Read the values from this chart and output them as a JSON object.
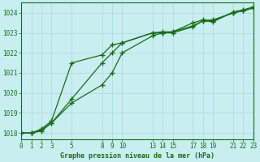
{
  "title": "Graphe pression niveau de la mer (hPa)",
  "bg_color": "#c8eef0",
  "grid_color": "#b0dce0",
  "line_color": "#1a6b1a",
  "x_ticks": [
    0,
    1,
    2,
    3,
    5,
    8,
    9,
    10,
    13,
    14,
    15,
    17,
    18,
    19,
    21,
    22,
    23
  ],
  "y_ticks": [
    1018,
    1019,
    1020,
    1021,
    1022,
    1023,
    1024
  ],
  "xlim": [
    0,
    23
  ],
  "ylim": [
    1017.7,
    1024.5
  ],
  "line1_x": [
    0,
    1,
    2,
    3,
    5,
    8,
    9,
    10,
    13,
    14,
    15,
    17,
    18,
    19,
    21,
    22,
    23
  ],
  "line1_y": [
    1018.0,
    1018.0,
    1018.2,
    1018.6,
    1021.5,
    1021.9,
    1022.4,
    1022.5,
    1023.0,
    1023.05,
    1023.05,
    1023.5,
    1023.65,
    1023.6,
    1024.0,
    1024.1,
    1024.25
  ],
  "line2_x": [
    0,
    1,
    2,
    3,
    5,
    8,
    9,
    10,
    13,
    14,
    15,
    17,
    18,
    19,
    21,
    22,
    23
  ],
  "line2_y": [
    1018.0,
    1018.0,
    1018.1,
    1018.5,
    1019.5,
    1020.4,
    1021.0,
    1022.0,
    1022.85,
    1023.0,
    1023.05,
    1023.35,
    1023.6,
    1023.65,
    1024.0,
    1024.1,
    1024.25
  ],
  "line3_x": [
    0,
    1,
    2,
    3,
    5,
    8,
    9,
    10,
    13,
    14,
    15,
    17,
    18,
    19,
    21,
    22,
    23
  ],
  "line3_y": [
    1018.0,
    1018.0,
    1018.15,
    1018.5,
    1019.7,
    1021.5,
    1022.0,
    1022.5,
    1023.0,
    1023.0,
    1023.0,
    1023.3,
    1023.6,
    1023.55,
    1024.05,
    1024.15,
    1024.3
  ]
}
